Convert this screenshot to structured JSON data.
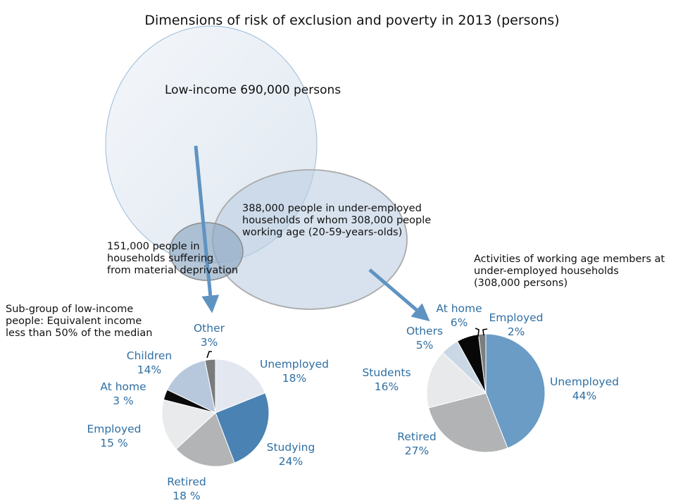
{
  "title": "Dimensions of risk of exclusion and poverty in 2013 (persons)",
  "venn": {
    "low_income": "Low-income 690,000 persons",
    "under_employed": [
      "388,000 people in under-employed",
      "households of whom 308,000 people",
      "working age (20-59-years-olds)"
    ],
    "material_deprivation": [
      "151,000 people in",
      "households suffering",
      "from material deprivation"
    ]
  },
  "left_caption": [
    "Sub-group of low-income",
    "people: Equivalent income",
    "less than 50% of the median"
  ],
  "right_caption": [
    "Activities of working age members at",
    "under-employed households",
    "(308,000 persons)"
  ],
  "chart_data": [
    {
      "type": "pie",
      "title": "Sub-group of low-income people: Equivalent income less than 50% of the median",
      "slices": [
        {
          "name": "Unemployed",
          "value": 18,
          "label": "18%",
          "color": "#e3e8f0"
        },
        {
          "name": "Studying",
          "value": 24,
          "label": "24%",
          "color": "#4a82b4"
        },
        {
          "name": "Retired",
          "value": 18,
          "label": "18 %",
          "color": "#b3b4b6"
        },
        {
          "name": "Employed",
          "value": 15,
          "label": "15 %",
          "color": "#e9eaeb"
        },
        {
          "name": "At home",
          "value": 3,
          "label": "3 %",
          "color": "#0a0a0a"
        },
        {
          "name": "Children",
          "value": 14,
          "label": "14%",
          "color": "#b7c8dc"
        },
        {
          "name": "Other",
          "value": 3,
          "label": "3%",
          "color": "#7a7b7d"
        }
      ]
    },
    {
      "type": "pie",
      "title": "Activities of working age members at under-employed households (308,000 persons)",
      "slices": [
        {
          "name": "Unemployed",
          "value": 44,
          "label": "44%",
          "color": "#6a9cc5"
        },
        {
          "name": "Retired",
          "value": 27,
          "label": "27%",
          "color": "#b2b3b5"
        },
        {
          "name": "Students",
          "value": 16,
          "label": "16%",
          "color": "#e8e9ea"
        },
        {
          "name": "Others",
          "value": 5,
          "label": "5%",
          "color": "#cad8e6"
        },
        {
          "name": "At home",
          "value": 6,
          "label": "6%",
          "color": "#080808"
        },
        {
          "name": "Employed",
          "value": 2,
          "label": "2%",
          "color": "#7c7d7f"
        }
      ]
    }
  ]
}
